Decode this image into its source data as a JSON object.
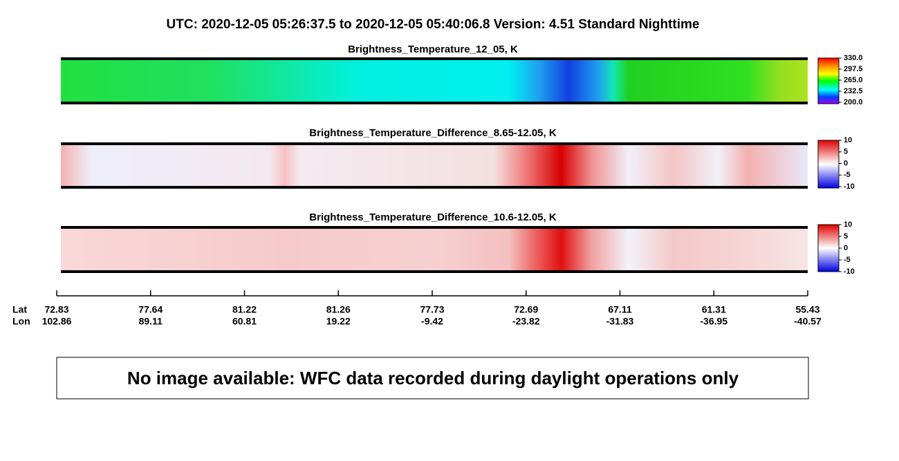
{
  "header": {
    "title": "UTC:  2020-12-05   05:26:37.5  to  2020-12-05   05:40:06.8    Version: 4.51  Standard Nighttime"
  },
  "panels": [
    {
      "title": "Brightness_Temperature_12_05, K",
      "colorbar_ticks": [
        "330.0",
        "297.5",
        "265.0",
        "232.5",
        "200.0"
      ]
    },
    {
      "title": "Brightness_Temperature_Difference_8.65-12.05, K",
      "colorbar_ticks": [
        "10",
        "5",
        "0",
        "-5",
        "-10"
      ]
    },
    {
      "title": "Brightness_Temperature_Difference_10.6-12.05, K",
      "colorbar_ticks": [
        "10",
        "5",
        "0",
        "-5",
        "-10"
      ]
    }
  ],
  "axis": {
    "lat_label": "Lat",
    "lon_label": "Lon",
    "ticks": [
      {
        "lat": "72.83",
        "lon": "102.86"
      },
      {
        "lat": "77.64",
        "lon": "89.11"
      },
      {
        "lat": "81.22",
        "lon": "60.81"
      },
      {
        "lat": "81.26",
        "lon": "19.22"
      },
      {
        "lat": "77.73",
        "lon": "-9.42"
      },
      {
        "lat": "72.69",
        "lon": "-23.82"
      },
      {
        "lat": "67.11",
        "lon": "-31.83"
      },
      {
        "lat": "61.31",
        "lon": "-36.95"
      },
      {
        "lat": "55.43",
        "lon": "-40.57"
      }
    ]
  },
  "message": "No image available: WFC data recorded during daylight operations only"
}
